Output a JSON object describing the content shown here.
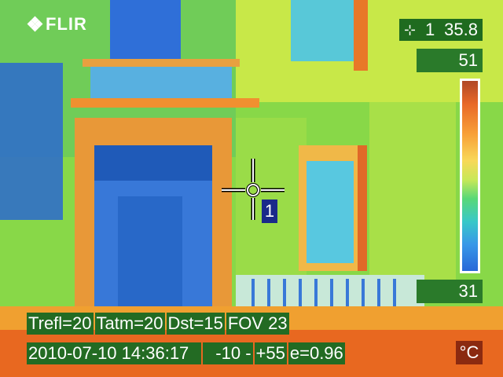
{
  "brand": {
    "logo_text": "FLIR",
    "logo_icon": "flir-diamond-icon"
  },
  "measurement": {
    "spot_index": "1",
    "spot_value": "35.8",
    "spot_icon": "spot-crosshair-icon",
    "spot_label": "1"
  },
  "scale": {
    "max": "51",
    "min": "31",
    "unit": "°C"
  },
  "parameters": {
    "trefl": "Trefl=20",
    "tatm": "Tatm=20",
    "dst": "Dst=15",
    "fov": "FOV 23"
  },
  "status": {
    "datetime": "2010-07-10 14:36:17",
    "range_low": "-10 -",
    "range_high": "+55",
    "emissivity": "e=0.96"
  },
  "colors": {
    "hud_bg": "#236b23",
    "unit_bg": "#8b2a10",
    "spot_label_bg": "#1a2a8a"
  }
}
